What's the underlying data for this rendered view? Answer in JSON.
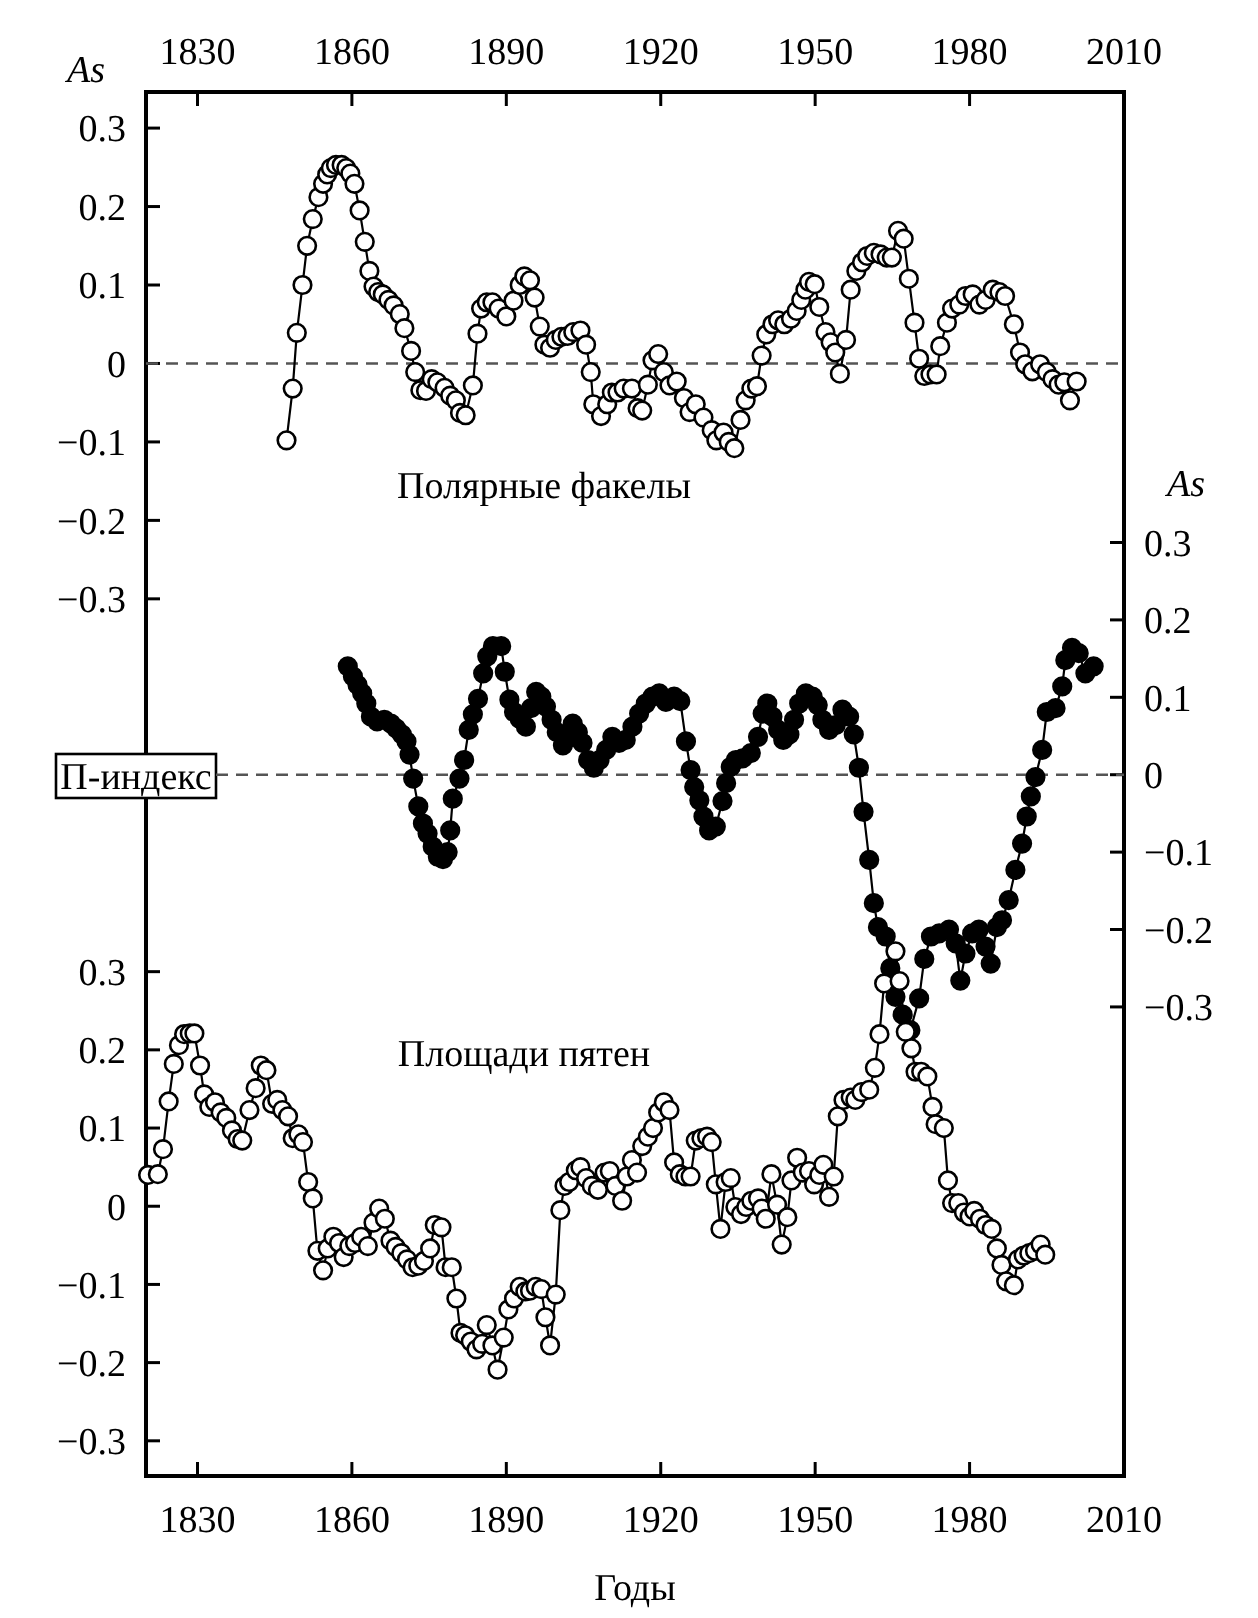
{
  "chart_data": [
    {
      "type": "line",
      "title": "Полярные факелы",
      "ylabel": "As",
      "marker": "circle",
      "xlim": [
        1820,
        2010
      ],
      "xticks": [
        1830,
        1860,
        1890,
        1920,
        1950,
        1980,
        2010
      ],
      "ylim": [
        -1.418,
        0.346
      ],
      "yticks": [
        {
          "value": -0.3,
          "label": "−0.3"
        },
        {
          "value": -0.2,
          "label": "−0.2"
        },
        {
          "value": -0.1,
          "label": "−0.1"
        },
        0,
        0.1,
        0.2,
        0.3
      ],
      "ref_lines": [
        {
          "axis": "y",
          "value": 0,
          "color": "#555555",
          "line_style": "dashed"
        }
      ],
      "series": [
        {
          "color": "#ffffff",
          "x": [
            1847.3,
            1848.5,
            1849.3,
            1850.4,
            1851.3,
            1852.4,
            1853.5,
            1854.4,
            1855.2,
            1855.9,
            1856.9,
            1858,
            1858.9,
            1859.7,
            1860.5,
            1861.5,
            1862.5,
            1863.4,
            1864.2,
            1865.1,
            1866,
            1867.1,
            1868.1,
            1869.3,
            1870.2,
            1871.5,
            1872.3,
            1873.3,
            1874.4,
            1875.5,
            1876.6,
            1878,
            1879.1,
            1880.2,
            1881,
            1882.1,
            1883.5,
            1884.4,
            1885.1,
            1886.2,
            1887.3,
            1888.5,
            1890,
            1891.4,
            1892.6,
            1893.5,
            1894.6,
            1895.5,
            1896.5,
            1897.4,
            1898.5,
            1899.6,
            1900.7,
            1901.9,
            1903,
            1904.4,
            1905.5,
            1906.4,
            1906.9,
            1908.4,
            1909.6,
            1910.5,
            1911.6,
            1912.8,
            1914.4,
            1915.5,
            1916.4,
            1917.5,
            1918.4,
            1919.5,
            1920.6,
            1921.7,
            1923.1,
            1924.5,
            1925.6,
            1926.8,
            1928.3,
            1929.9,
            1930.8,
            1932.2,
            1933.2,
            1934.3,
            1935.5,
            1936.5,
            1937.6,
            1938.7,
            1939.6,
            1940.5,
            1941.7,
            1942.8,
            1944,
            1945.3,
            1946.4,
            1947.3,
            1948.1,
            1948.8,
            1949.9,
            1950.8,
            1952,
            1953,
            1953.9,
            1954.8,
            1956,
            1956.9,
            1958,
            1959.1,
            1960.1,
            1961.4,
            1962.7,
            1963.9,
            1964.9,
            1966.1,
            1967.2,
            1968.2,
            1969.3,
            1970.2,
            1971.2,
            1972.4,
            1973.6,
            1974.3,
            1975.6,
            1976.6,
            1978,
            1979.2,
            1980.6,
            1981.9,
            1983.1,
            1984.5,
            1985.8,
            1986.9,
            1988.6,
            1989.8,
            1990.8,
            1992.2,
            1993.7,
            1995,
            1996.1,
            1997.3,
            1998.4,
            1999.5,
            2000.8
          ],
          "values": [
            -0.098,
            -0.032,
            0.039,
            0.1,
            0.15,
            0.184,
            0.212,
            0.229,
            0.241,
            0.249,
            0.253,
            0.253,
            0.249,
            0.242,
            0.229,
            0.195,
            0.155,
            0.118,
            0.098,
            0.091,
            0.088,
            0.081,
            0.074,
            0.063,
            0.045,
            0.016,
            -0.011,
            -0.034,
            -0.035,
            -0.02,
            -0.024,
            -0.031,
            -0.041,
            -0.047,
            -0.063,
            -0.066,
            -0.028,
            0.038,
            0.07,
            0.078,
            0.078,
            0.07,
            0.06,
            0.08,
            0.1,
            0.111,
            0.106,
            0.084,
            0.047,
            0.024,
            0.02,
            0.03,
            0.034,
            0.035,
            0.04,
            0.042,
            0.024,
            -0.011,
            -0.052,
            -0.067,
            -0.052,
            -0.037,
            -0.037,
            -0.032,
            -0.032,
            -0.057,
            -0.06,
            -0.027,
            0.004,
            0.012,
            -0.011,
            -0.028,
            -0.023,
            -0.044,
            -0.062,
            -0.052,
            -0.069,
            -0.085,
            -0.098,
            -0.088,
            -0.1,
            -0.108,
            -0.072,
            -0.047,
            -0.032,
            -0.029,
            0.01,
            0.037,
            0.05,
            0.055,
            0.05,
            0.057,
            0.067,
            0.081,
            0.094,
            0.104,
            0.101,
            0.072,
            0.04,
            0.027,
            0.014,
            -0.013,
            0.03,
            0.094,
            0.118,
            0.129,
            0.137,
            0.141,
            0.139,
            0.135,
            0.135,
            0.169,
            0.159,
            0.108,
            0.052,
            0.006,
            -0.016,
            -0.014,
            -0.014,
            0.022,
            0.052,
            0.07,
            0.075,
            0.086,
            0.088,
            0.075,
            0.081,
            0.094,
            0.091,
            0.086,
            0.05,
            0.014,
            -0.001,
            -0.01,
            -0.001,
            -0.011,
            -0.02,
            -0.027,
            -0.024,
            -0.047,
            -0.023
          ]
        }
      ]
    },
    {
      "type": "line",
      "title": "П-индекс",
      "y2label": "As",
      "marker": "circle",
      "tick_labels": "y",
      "xlim": [
        1820,
        2010
      ],
      "y2lim": [
        -0.906,
        0.882
      ],
      "y2ticks": [
        {
          "value": -0.3,
          "label": "−0.3"
        },
        {
          "value": -0.2,
          "label": "−0.2"
        },
        {
          "value": -0.1,
          "label": "−0.1"
        },
        0,
        0.1,
        0.2,
        0.3
      ],
      "ref_lines": [
        {
          "axis": "y2",
          "value": 0,
          "color": "#555555",
          "line_style": "dashed"
        }
      ],
      "series": [
        {
          "color": "#000000",
          "axis": "y2",
          "x": [
            1859.2,
            1860.2,
            1861.1,
            1862,
            1862.8,
            1863.7,
            1864.9,
            1866.3,
            1867.6,
            1868.6,
            1869.7,
            1870.6,
            1871.2,
            1871.9,
            1872.9,
            1873.8,
            1874.7,
            1875.7,
            1876.7,
            1877.7,
            1878.6,
            1879.1,
            1879.6,
            1880.9,
            1881.8,
            1882.7,
            1883.5,
            1884.5,
            1885.5,
            1886.3,
            1887.4,
            1889,
            1889.7,
            1890.6,
            1891.5,
            1892.6,
            1893.8,
            1894.8,
            1895.8,
            1896.8,
            1897.7,
            1898.8,
            1899.8,
            1901,
            1901.9,
            1902.9,
            1903.9,
            1904.8,
            1905.9,
            1907,
            1908.1,
            1909.4,
            1910.6,
            1911.9,
            1913.2,
            1914.5,
            1915.8,
            1917.1,
            1918.4,
            1919.7,
            1921,
            1922.6,
            1923.8,
            1924.9,
            1925.8,
            1926.5,
            1927.5,
            1928.3,
            1929.4,
            1930.7,
            1932,
            1932.7,
            1933.6,
            1934.6,
            1935.9,
            1937.5,
            1938.9,
            1939.8,
            1940.7,
            1941.7,
            1942.8,
            1943.8,
            1945,
            1945.9,
            1946.9,
            1948.2,
            1949.5,
            1950.5,
            1951.4,
            1952.7,
            1954,
            1955.3,
            1956.6,
            1957.5,
            1958.5,
            1959.4,
            1960.5,
            1961.4,
            1962.2,
            1963.7,
            1964.6,
            1965.6,
            1967,
            1968.5,
            1970.2,
            1971.2,
            1972.5,
            1974.1,
            1976,
            1977.3,
            1978.2,
            1979.2,
            1980.5,
            1981.8,
            1983.1,
            1984.1,
            1985.3,
            1986.3,
            1987.6,
            1988.9,
            1990.2,
            1991.1,
            1991.9,
            1992.8,
            1994.1,
            1995,
            1996.7,
            1998,
            1998.6,
            1999.9,
            2001.2,
            2002.5,
            2004.1
          ],
          "values": [
            0.14,
            0.127,
            0.116,
            0.105,
            0.092,
            0.075,
            0.069,
            0.071,
            0.066,
            0.06,
            0.052,
            0.043,
            0.026,
            -0.005,
            -0.041,
            -0.063,
            -0.076,
            -0.093,
            -0.106,
            -0.109,
            -0.1,
            -0.072,
            -0.031,
            -0.005,
            0.019,
            0.058,
            0.078,
            0.098,
            0.131,
            0.153,
            0.166,
            0.166,
            0.133,
            0.097,
            0.081,
            0.072,
            0.062,
            0.086,
            0.107,
            0.101,
            0.088,
            0.071,
            0.055,
            0.038,
            0.047,
            0.066,
            0.055,
            0.041,
            0.019,
            0.009,
            0.019,
            0.032,
            0.049,
            0.041,
            0.045,
            0.062,
            0.079,
            0.092,
            0.101,
            0.105,
            0.094,
            0.101,
            0.095,
            0.043,
            0.006,
            -0.016,
            -0.033,
            -0.054,
            -0.072,
            -0.067,
            -0.034,
            -0.011,
            0.01,
            0.019,
            0.021,
            0.028,
            0.049,
            0.079,
            0.092,
            0.075,
            0.058,
            0.045,
            0.052,
            0.071,
            0.092,
            0.105,
            0.101,
            0.09,
            0.071,
            0.058,
            0.064,
            0.084,
            0.075,
            0.052,
            0.009,
            -0.048,
            -0.11,
            -0.166,
            -0.197,
            -0.209,
            -0.25,
            -0.287,
            -0.31,
            -0.33,
            -0.289,
            -0.238,
            -0.209,
            -0.205,
            -0.2,
            -0.218,
            -0.266,
            -0.231,
            -0.205,
            -0.2,
            -0.222,
            -0.244,
            -0.197,
            -0.188,
            -0.162,
            -0.123,
            -0.089,
            -0.054,
            -0.028,
            -0.003,
            0.032,
            0.081,
            0.086,
            0.114,
            0.148,
            0.164,
            0.157,
            0.131,
            0.14
          ]
        }
      ]
    },
    {
      "type": "line",
      "title": "Площади пятен",
      "xlabel": "Годы",
      "marker": "circle",
      "xlim": [
        1820,
        2010
      ],
      "xticks": [
        1830,
        1860,
        1890,
        1920,
        1950,
        1980,
        2010
      ],
      "ylim": [
        -0.345,
        1.425
      ],
      "yticks": [
        {
          "value": -0.3,
          "label": "−0.3"
        },
        {
          "value": -0.2,
          "label": "−0.2"
        },
        {
          "value": -0.1,
          "label": "−0.1"
        },
        0,
        0.1,
        0.2,
        0.3
      ],
      "series": [
        {
          "color": "#ffffff",
          "x": [
            1820.4,
            1822.3,
            1823.3,
            1824.4,
            1825.4,
            1826.4,
            1827.4,
            1828.5,
            1829.4,
            1830.5,
            1831.3,
            1832.3,
            1833.4,
            1834.5,
            1835.6,
            1836.7,
            1837.8,
            1838.7,
            1840.1,
            1841.3,
            1842.3,
            1843.4,
            1844.5,
            1845.5,
            1846.5,
            1847.6,
            1848.5,
            1849.6,
            1850.5,
            1851.5,
            1852.4,
            1853.3,
            1854.4,
            1855.3,
            1856.4,
            1857.5,
            1858.4,
            1859.5,
            1860.6,
            1861.8,
            1863.1,
            1864.2,
            1865.3,
            1866.4,
            1867.5,
            1868.5,
            1869.6,
            1870.7,
            1871.8,
            1872.9,
            1874,
            1875.2,
            1876.1,
            1877.4,
            1878.2,
            1879.4,
            1880.3,
            1881.1,
            1882,
            1883.1,
            1884.2,
            1885.3,
            1886.2,
            1887.3,
            1888.3,
            1889.5,
            1890.4,
            1891.5,
            1892.6,
            1893.7,
            1894.6,
            1895.7,
            1896.8,
            1897.6,
            1898.5,
            1899.6,
            1900.5,
            1901.3,
            1902.2,
            1903.5,
            1904.4,
            1905.5,
            1906.6,
            1907.8,
            1909.1,
            1910.1,
            1911.2,
            1912.5,
            1913.4,
            1914.4,
            1915.4,
            1916.4,
            1917.5,
            1918.5,
            1919.5,
            1920.6,
            1921.7,
            1922.6,
            1923.7,
            1924.8,
            1925.8,
            1926.8,
            1927.9,
            1929,
            1929.9,
            1930.7,
            1931.6,
            1932.6,
            1933.6,
            1934.5,
            1935.6,
            1936.6,
            1937.6,
            1938.9,
            1939.6,
            1940.4,
            1941.5,
            1942.6,
            1943.5,
            1944.6,
            1945.4,
            1946.5,
            1947.6,
            1948.8,
            1949.8,
            1950.8,
            1951.6,
            1952.7,
            1953.6,
            1954.4,
            1955.5,
            1956.9,
            1957.8,
            1959,
            1960.5,
            1961.6,
            1962.5,
            1963.4,
            1965.6,
            1966.4,
            1967.6,
            1968.7,
            1969.5,
            1970.6,
            1971.8,
            1972.8,
            1973.4,
            1975,
            1975.8,
            1976.6,
            1977.8,
            1978.9,
            1980,
            1980.9,
            1982,
            1983.1,
            1984.3,
            1985.3,
            1986.2,
            1987.1,
            1988.6,
            1989.4,
            1990.5,
            1991.6,
            1992.7,
            1993.8,
            1994.7
          ],
          "values": [
            0.04,
            0.041,
            0.073,
            0.134,
            0.182,
            0.206,
            0.22,
            0.221,
            0.221,
            0.18,
            0.143,
            0.127,
            0.133,
            0.12,
            0.113,
            0.097,
            0.086,
            0.084,
            0.123,
            0.151,
            0.18,
            0.174,
            0.131,
            0.136,
            0.123,
            0.115,
            0.087,
            0.092,
            0.082,
            0.031,
            0.01,
            -0.057,
            -0.082,
            -0.054,
            -0.039,
            -0.047,
            -0.065,
            -0.051,
            -0.047,
            -0.039,
            -0.051,
            -0.021,
            -0.003,
            -0.016,
            -0.044,
            -0.052,
            -0.06,
            -0.068,
            -0.078,
            -0.076,
            -0.07,
            -0.054,
            -0.024,
            -0.027,
            -0.078,
            -0.078,
            -0.118,
            -0.162,
            -0.165,
            -0.173,
            -0.183,
            -0.176,
            -0.152,
            -0.178,
            -0.209,
            -0.168,
            -0.132,
            -0.118,
            -0.103,
            -0.109,
            -0.108,
            -0.103,
            -0.106,
            -0.142,
            -0.178,
            -0.113,
            -0.005,
            0.026,
            0.031,
            0.046,
            0.05,
            0.036,
            0.026,
            0.021,
            0.043,
            0.045,
            0.026,
            0.007,
            0.038,
            0.059,
            0.043,
            0.077,
            0.089,
            0.1,
            0.12,
            0.133,
            0.123,
            0.056,
            0.041,
            0.038,
            0.038,
            0.084,
            0.087,
            0.089,
            0.082,
            0.028,
            -0.029,
            0.031,
            0.036,
            -0.001,
            -0.01,
            -0.001,
            0.007,
            0.01,
            -0.003,
            -0.016,
            0.041,
            0.002,
            -0.049,
            -0.014,
            0.033,
            0.062,
            0.043,
            0.045,
            0.028,
            0.04,
            0.053,
            0.012,
            0.038,
            0.115,
            0.136,
            0.139,
            0.136,
            0.146,
            0.149,
            0.177,
            0.22,
            0.285,
            0.326,
            0.288,
            0.223,
            0.202,
            0.172,
            0.172,
            0.166,
            0.127,
            0.105,
            0.1,
            0.033,
            0.004,
            0.004,
            -0.008,
            -0.013,
            -0.006,
            -0.016,
            -0.024,
            -0.029,
            -0.054,
            -0.075,
            -0.096,
            -0.101,
            -0.068,
            -0.063,
            -0.06,
            -0.057,
            -0.049,
            -0.062
          ]
        }
      ]
    }
  ]
}
